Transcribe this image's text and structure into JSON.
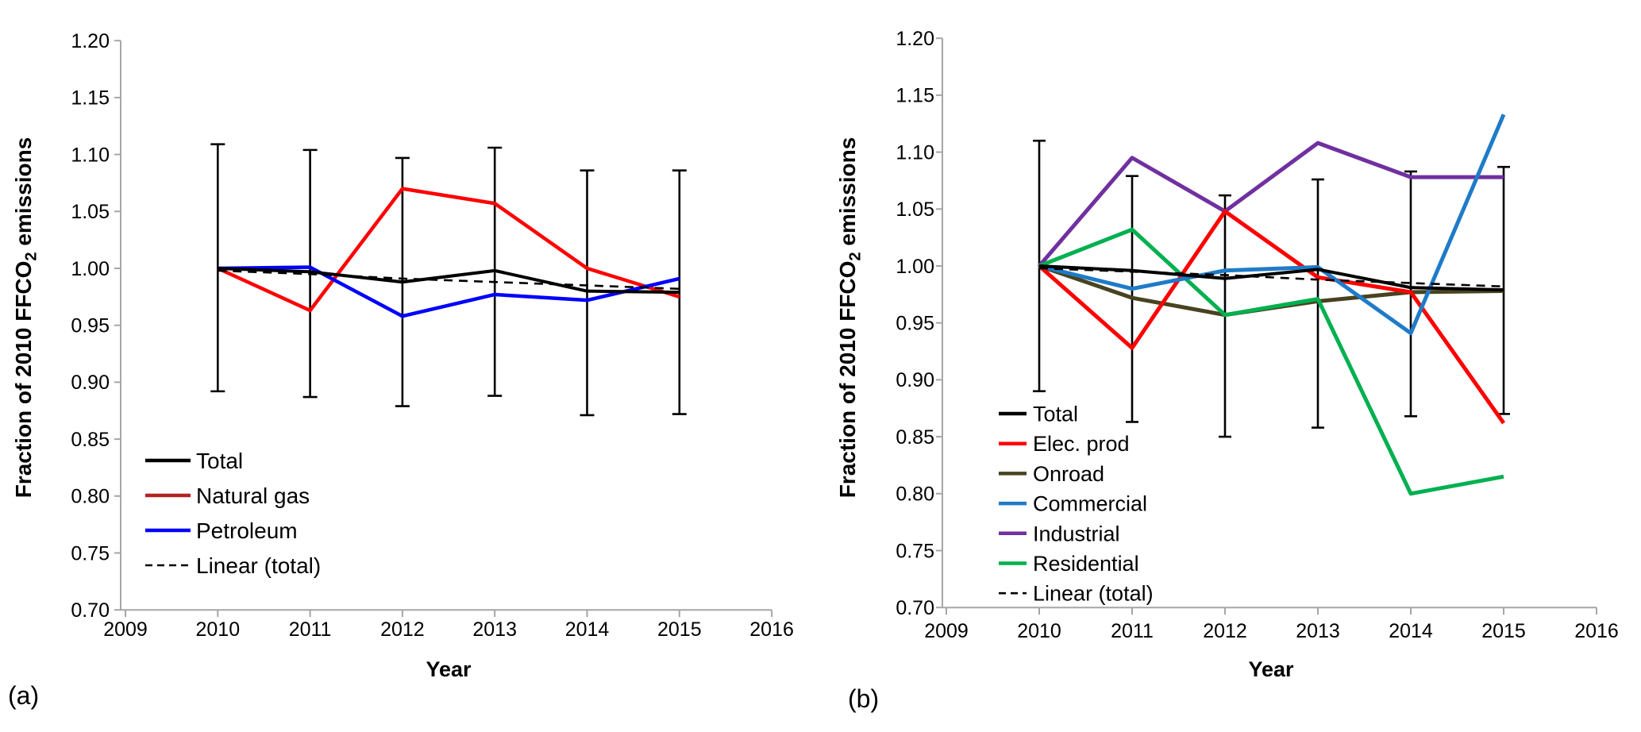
{
  "figure": {
    "background": "#FFFFFF",
    "axis_color": "#A6A6A6",
    "text_color": "#000000"
  },
  "axes": {
    "y_title_prefix": "Fraction of 2010 FFCO",
    "y_title_sub": "2",
    "y_title_suffix": " emissions",
    "x_title": "Year",
    "y_ticks": [
      0.7,
      0.75,
      0.8,
      0.85,
      0.9,
      0.95,
      1.0,
      1.05,
      1.1,
      1.15,
      1.2
    ],
    "x_ticks": [
      2009,
      2010,
      2011,
      2012,
      2013,
      2014,
      2015,
      2016
    ],
    "ylim": [
      0.7,
      1.2
    ],
    "xlim": [
      2009,
      2016
    ]
  },
  "chart_data": [
    {
      "type": "line",
      "panel_label": "(a)",
      "x": [
        2010,
        2011,
        2012,
        2013,
        2014,
        2015
      ],
      "series": [
        {
          "name": "Total",
          "color": "#000000",
          "z": 3,
          "width": 4,
          "values": [
            1.0,
            0.997,
            0.988,
            0.998,
            0.98,
            0.979
          ]
        },
        {
          "name": "Natural gas",
          "color": "#FF0000",
          "legend_color": "#B22222",
          "z": 1,
          "width": 4.5,
          "values": [
            1.0,
            0.963,
            1.07,
            1.057,
            1.0,
            0.975
          ]
        },
        {
          "name": "Petroleum",
          "color": "#0000FF",
          "z": 2,
          "width": 4.5,
          "values": [
            1.0,
            1.001,
            0.958,
            0.977,
            0.972,
            0.991
          ]
        },
        {
          "name": "Linear (total)",
          "color": "#000000",
          "dashed": true,
          "z": 4,
          "width": 2.6,
          "values": [
            0.998,
            0.995,
            0.991,
            0.988,
            0.985,
            0.982
          ]
        }
      ],
      "error_bars": {
        "color": "#000000",
        "top": [
          1.109,
          1.104,
          1.097,
          1.106,
          1.086,
          1.086
        ],
        "bottom": [
          0.892,
          0.887,
          0.879,
          0.888,
          0.871,
          0.872
        ]
      }
    },
    {
      "type": "line",
      "panel_label": "(b)",
      "x": [
        2010,
        2011,
        2012,
        2013,
        2014,
        2015
      ],
      "series": [
        {
          "name": "Total",
          "color": "#000000",
          "z": 6,
          "width": 4,
          "values": [
            1.0,
            0.996,
            0.989,
            0.997,
            0.981,
            0.979
          ]
        },
        {
          "name": "Elec. prod",
          "color": "#FF0000",
          "z": 4,
          "width": 5,
          "values": [
            1.0,
            0.928,
            1.048,
            0.99,
            0.977,
            0.862
          ]
        },
        {
          "name": "Onroad",
          "color": "#474320",
          "z": 1,
          "width": 5,
          "values": [
            1.0,
            0.972,
            0.957,
            0.969,
            0.977,
            0.978
          ]
        },
        {
          "name": "Commercial",
          "color": "#1F7BC8",
          "z": 5,
          "width": 5,
          "values": [
            1.0,
            0.98,
            0.996,
            0.999,
            0.941,
            1.133
          ]
        },
        {
          "name": "Industrial",
          "color": "#7030A0",
          "z": 2,
          "width": 5,
          "values": [
            1.0,
            1.095,
            1.048,
            1.108,
            1.078,
            1.078
          ]
        },
        {
          "name": "Residential",
          "color": "#00B050",
          "z": 3,
          "width": 5,
          "values": [
            1.0,
            1.032,
            0.957,
            0.971,
            0.8,
            0.815
          ]
        },
        {
          "name": "Linear (total)",
          "color": "#000000",
          "dashed": true,
          "z": 7,
          "width": 2.6,
          "values": [
            0.998,
            0.995,
            0.992,
            0.988,
            0.985,
            0.982
          ]
        }
      ],
      "error_bars": {
        "color": "#000000",
        "top": [
          1.11,
          1.079,
          1.062,
          1.076,
          1.083,
          1.087
        ],
        "bottom": [
          0.89,
          0.863,
          0.85,
          0.858,
          0.868,
          0.87
        ]
      }
    }
  ]
}
